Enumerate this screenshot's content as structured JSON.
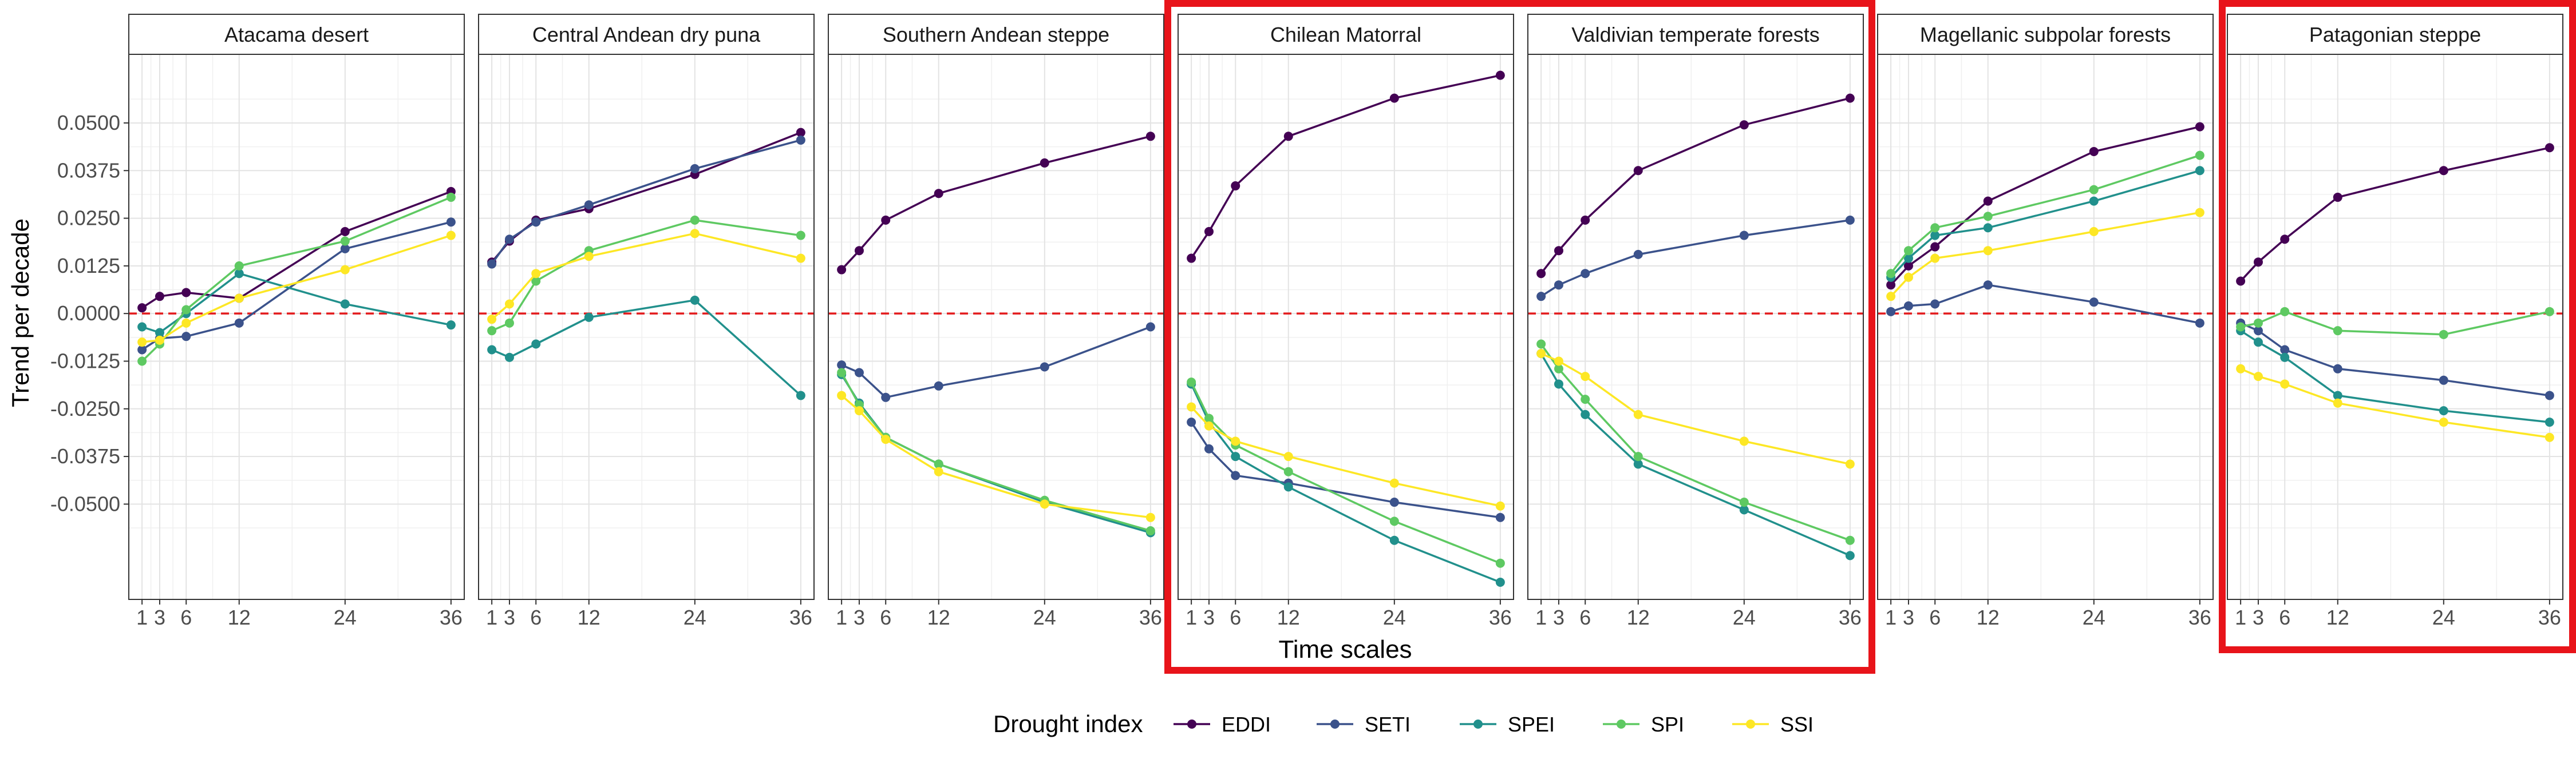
{
  "chart_data": {
    "type": "line",
    "ylabel": "Trend per decade",
    "xlabel": "Time scales",
    "x": [
      1,
      3,
      6,
      12,
      24,
      36
    ],
    "x_ticks": [
      "1",
      "3",
      "6",
      "12",
      "24",
      "36"
    ],
    "y_ticks": [
      "-0.0500",
      "-0.0375",
      "-0.0250",
      "-0.0125",
      "0.0000",
      "0.0125",
      "0.0250",
      "0.0375",
      "0.0500"
    ],
    "ylim": [
      -0.075,
      0.068
    ],
    "reference_line": {
      "y": 0,
      "color": "#e31a1c",
      "style": "dashed"
    },
    "highlight_color": "#e8141a",
    "highlighted_panels": [
      "Chilean Matorral",
      "Valdivian temperate forests",
      "Patagonian steppe"
    ],
    "legend": {
      "title": "Drought index",
      "position": "bottom",
      "entries": [
        {
          "name": "EDDI",
          "color": "#440154"
        },
        {
          "name": "SETI",
          "color": "#3b528b"
        },
        {
          "name": "SPEI",
          "color": "#21908c"
        },
        {
          "name": "SPI",
          "color": "#5ec962"
        },
        {
          "name": "SSI",
          "color": "#fde725"
        }
      ]
    },
    "panels": [
      {
        "title": "Atacama desert",
        "series": [
          {
            "name": "EDDI",
            "values": [
              0.0015,
              0.0045,
              0.0055,
              0.004,
              0.0215,
              0.032
            ]
          },
          {
            "name": "SETI",
            "values": [
              -0.0095,
              -0.0065,
              -0.006,
              -0.0025,
              0.017,
              0.024
            ]
          },
          {
            "name": "SPEI",
            "values": [
              -0.0035,
              -0.005,
              0.0,
              0.0105,
              0.0025,
              -0.003
            ]
          },
          {
            "name": "SPI",
            "values": [
              -0.0125,
              -0.008,
              0.001,
              0.0125,
              0.019,
              0.0305
            ]
          },
          {
            "name": "SSI",
            "values": [
              -0.0075,
              -0.007,
              -0.0025,
              0.004,
              0.0115,
              0.0205
            ]
          }
        ]
      },
      {
        "title": "Central Andean dry puna",
        "series": [
          {
            "name": "EDDI",
            "values": [
              0.0135,
              0.019,
              0.0245,
              0.0275,
              0.0365,
              0.0475
            ]
          },
          {
            "name": "SETI",
            "values": [
              0.013,
              0.0195,
              0.024,
              0.0285,
              0.038,
              0.0455
            ]
          },
          {
            "name": "SPEI",
            "values": [
              -0.0095,
              -0.0115,
              -0.008,
              -0.001,
              0.0035,
              -0.0215
            ]
          },
          {
            "name": "SPI",
            "values": [
              -0.0045,
              -0.0025,
              0.0085,
              0.0165,
              0.0245,
              0.0205
            ]
          },
          {
            "name": "SSI",
            "values": [
              -0.0015,
              0.0025,
              0.0105,
              0.015,
              0.021,
              0.0145
            ]
          }
        ]
      },
      {
        "title": "Southern Andean steppe",
        "series": [
          {
            "name": "EDDI",
            "values": [
              0.0115,
              0.0165,
              0.0245,
              0.0315,
              0.0395,
              0.0465
            ]
          },
          {
            "name": "SETI",
            "values": [
              -0.0135,
              -0.0155,
              -0.022,
              -0.019,
              -0.014,
              -0.0035
            ]
          },
          {
            "name": "SPEI",
            "values": [
              -0.016,
              -0.0235,
              -0.0325,
              -0.0395,
              -0.0495,
              -0.0575
            ]
          },
          {
            "name": "SPI",
            "values": [
              -0.0155,
              -0.024,
              -0.0325,
              -0.0395,
              -0.049,
              -0.057
            ]
          },
          {
            "name": "SSI",
            "values": [
              -0.0215,
              -0.0255,
              -0.033,
              -0.0415,
              -0.05,
              -0.0535
            ]
          }
        ]
      },
      {
        "title": "Chilean Matorral",
        "series": [
          {
            "name": "EDDI",
            "values": [
              0.0145,
              0.0215,
              0.0335,
              0.0465,
              0.0565,
              0.0625
            ]
          },
          {
            "name": "SETI",
            "values": [
              -0.0285,
              -0.0355,
              -0.0425,
              -0.0445,
              -0.0495,
              -0.0535
            ]
          },
          {
            "name": "SPEI",
            "values": [
              -0.0185,
              -0.0285,
              -0.0375,
              -0.0455,
              -0.0595,
              -0.0705
            ]
          },
          {
            "name": "SPI",
            "values": [
              -0.018,
              -0.0275,
              -0.0345,
              -0.0415,
              -0.0545,
              -0.0655
            ]
          },
          {
            "name": "SSI",
            "values": [
              -0.0245,
              -0.0295,
              -0.0335,
              -0.0375,
              -0.0445,
              -0.0505
            ]
          }
        ]
      },
      {
        "title": "Valdivian temperate forests",
        "series": [
          {
            "name": "EDDI",
            "values": [
              0.0105,
              0.0165,
              0.0245,
              0.0375,
              0.0495,
              0.0565
            ]
          },
          {
            "name": "SETI",
            "values": [
              0.0045,
              0.0075,
              0.0105,
              0.0155,
              0.0205,
              0.0245
            ]
          },
          {
            "name": "SPEI",
            "values": [
              -0.0105,
              -0.0185,
              -0.0265,
              -0.0395,
              -0.0515,
              -0.0635
            ]
          },
          {
            "name": "SPI",
            "values": [
              -0.008,
              -0.0145,
              -0.0225,
              -0.0375,
              -0.0495,
              -0.0595
            ]
          },
          {
            "name": "SSI",
            "values": [
              -0.0105,
              -0.0125,
              -0.0165,
              -0.0265,
              -0.0335,
              -0.0395
            ]
          }
        ]
      },
      {
        "title": "Magellanic subpolar forests",
        "series": [
          {
            "name": "EDDI",
            "values": [
              0.0075,
              0.0125,
              0.0175,
              0.0295,
              0.0425,
              0.049
            ]
          },
          {
            "name": "SETI",
            "values": [
              0.0005,
              0.002,
              0.0025,
              0.0075,
              0.003,
              -0.0025
            ]
          },
          {
            "name": "SPEI",
            "values": [
              0.0095,
              0.0145,
              0.0205,
              0.0225,
              0.0295,
              0.0375
            ]
          },
          {
            "name": "SPI",
            "values": [
              0.0105,
              0.0165,
              0.0225,
              0.0255,
              0.0325,
              0.0415
            ]
          },
          {
            "name": "SSI",
            "values": [
              0.0045,
              0.0095,
              0.0145,
              0.0165,
              0.0215,
              0.0265
            ]
          }
        ]
      },
      {
        "title": "Patagonian steppe",
        "series": [
          {
            "name": "EDDI",
            "values": [
              0.0085,
              0.0135,
              0.0195,
              0.0305,
              0.0375,
              0.0435
            ]
          },
          {
            "name": "SETI",
            "values": [
              -0.0025,
              -0.0045,
              -0.0095,
              -0.0145,
              -0.0175,
              -0.0215
            ]
          },
          {
            "name": "SPEI",
            "values": [
              -0.0045,
              -0.0075,
              -0.0115,
              -0.0215,
              -0.0255,
              -0.0285
            ]
          },
          {
            "name": "SPI",
            "values": [
              -0.0035,
              -0.0025,
              0.0005,
              -0.0045,
              -0.0055,
              0.0005
            ]
          },
          {
            "name": "SSI",
            "values": [
              -0.0145,
              -0.0165,
              -0.0185,
              -0.0235,
              -0.0285,
              -0.0325
            ]
          }
        ]
      }
    ]
  }
}
